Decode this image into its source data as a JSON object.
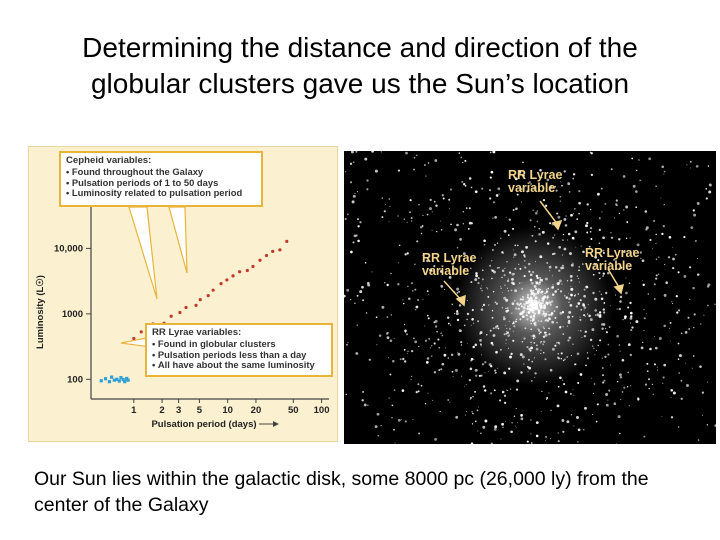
{
  "slide": {
    "title_line1": "Determining the distance and direction of the",
    "title_line2": "globular clusters gave us the Sun’s location",
    "caption": "Our Sun lies within the galactic disk, some 8000 pc (26,000 ly) from the center of the Galaxy"
  },
  "left_figure": {
    "cepheid_callout": {
      "heading": "Cepheid variables:",
      "bullets": [
        "Found throughout the Galaxy",
        "Pulsation periods of 1 to 50 days",
        "Luminosity related to pulsation period"
      ]
    },
    "rr_callout": {
      "heading": "RR Lyrae variables:",
      "bullets": [
        "Found in globular clusters",
        "Pulsation periods less than a day",
        "All have about the same luminosity"
      ]
    },
    "colors": {
      "cepheid": "#c0392b",
      "rr_lyrae": "#2f9fd8",
      "callout_border": "#e8b53a",
      "panel": "#fbf0cf"
    }
  },
  "chart_data": {
    "type": "scatter",
    "xlabel": "Pulsation period (days)",
    "ylabel": "Luminosity (L☉)",
    "x_scale": "log",
    "y_scale": "log",
    "xlim": [
      0.35,
      120
    ],
    "ylim": [
      50,
      40000
    ],
    "x_ticks": [
      1,
      2,
      3,
      5,
      10,
      20,
      50,
      100
    ],
    "x_tick_labels": [
      "1",
      "2",
      "3",
      "5",
      "10",
      "20",
      "50",
      "100"
    ],
    "y_ticks": [
      100,
      1000,
      10000
    ],
    "y_tick_labels": [
      "100",
      "1000",
      "10,000"
    ],
    "series": [
      {
        "name": "Cepheid variables",
        "color": "#c0392b",
        "points": [
          [
            1.0,
            420
          ],
          [
            1.2,
            530
          ],
          [
            1.6,
            700
          ],
          [
            2.1,
            720
          ],
          [
            2.5,
            920
          ],
          [
            3.1,
            1050
          ],
          [
            3.6,
            1250
          ],
          [
            4.6,
            1350
          ],
          [
            5.1,
            1650
          ],
          [
            6.2,
            1900
          ],
          [
            7.0,
            2300
          ],
          [
            8.5,
            2900
          ],
          [
            9.8,
            3300
          ],
          [
            11.4,
            3800
          ],
          [
            13.4,
            4400
          ],
          [
            16.2,
            4600
          ],
          [
            18.6,
            5300
          ],
          [
            22.1,
            6600
          ],
          [
            25.9,
            7800
          ],
          [
            30.2,
            9000
          ],
          [
            36.0,
            9500
          ],
          [
            42.6,
            12800
          ]
        ]
      },
      {
        "name": "RR Lyrae variables",
        "color": "#2f9fd8",
        "points": [
          [
            0.45,
            95
          ],
          [
            0.5,
            102
          ],
          [
            0.55,
            92
          ],
          [
            0.58,
            108
          ],
          [
            0.62,
            97
          ],
          [
            0.66,
            100
          ],
          [
            0.7,
            94
          ],
          [
            0.73,
            106
          ],
          [
            0.77,
            99
          ],
          [
            0.8,
            92
          ],
          [
            0.84,
            103
          ],
          [
            0.87,
            97
          ]
        ]
      }
    ]
  },
  "photo": {
    "labels": [
      "RR Lyrae\nvariable",
      "RR Lyrae\nvariable",
      "RR Lyrae\nvariable"
    ],
    "label_color": "#f2d48a"
  }
}
